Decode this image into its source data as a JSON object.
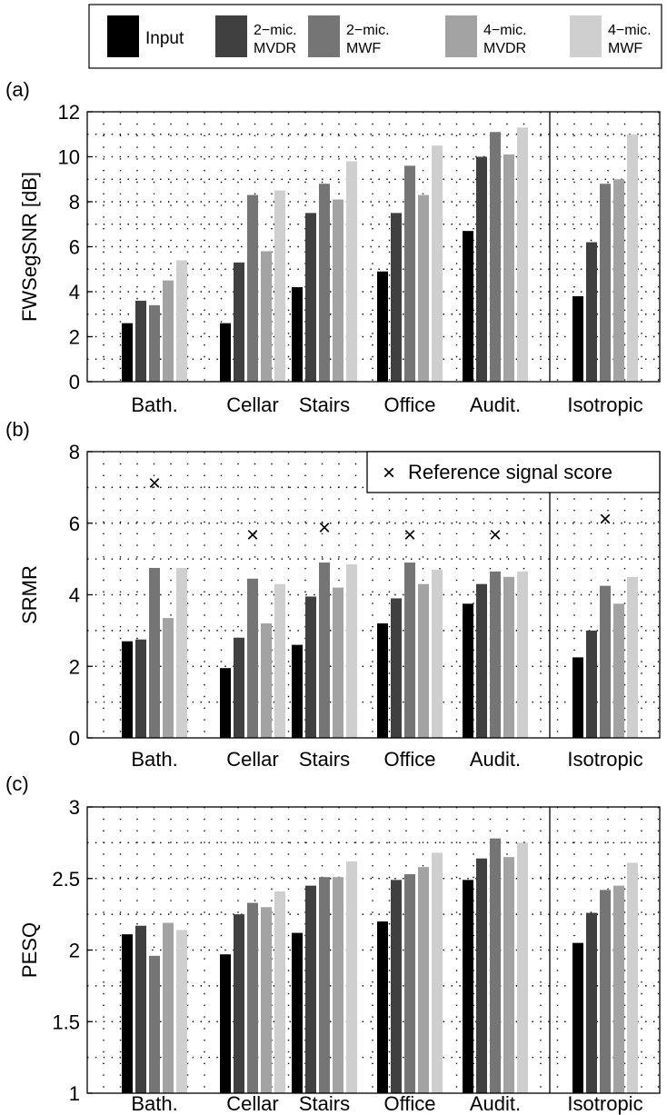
{
  "legend": {
    "colors": [
      "#000000",
      "#404040",
      "#757575",
      "#a3a3a3",
      "#cfcfcf"
    ],
    "entries": [
      {
        "line1": "Input",
        "line2": ""
      },
      {
        "line1": "2−mic.",
        "line2": "MVDR"
      },
      {
        "line1": "2−mic.",
        "line2": "MWF"
      },
      {
        "line1": "4−mic.",
        "line2": "MVDR"
      },
      {
        "line1": "4−mic.",
        "line2": "MWF"
      }
    ]
  },
  "chart_data": [
    {
      "type": "bar",
      "panel_label": "(a)",
      "ylabel": "FWSegSNR [dB]",
      "ylim": [
        0,
        12
      ],
      "yticks": [
        0,
        2,
        4,
        6,
        8,
        10,
        12
      ],
      "ytick_labels": [
        "0",
        "2",
        "4",
        "6",
        "8",
        "10",
        "12"
      ],
      "categories": [
        "Bath.",
        "Cellar",
        "Stairs",
        "Office",
        "Audit.",
        "Isotropic"
      ],
      "grid": true,
      "series": [
        {
          "name": "Input",
          "values": [
            2.6,
            2.6,
            4.2,
            4.9,
            6.7,
            3.8
          ]
        },
        {
          "name": "2−mic. MVDR",
          "values": [
            3.6,
            5.3,
            7.5,
            7.5,
            10.0,
            6.2
          ]
        },
        {
          "name": "2−mic. MWF",
          "values": [
            3.4,
            8.3,
            8.8,
            9.6,
            11.1,
            8.8
          ]
        },
        {
          "name": "4−mic. MVDR",
          "values": [
            4.5,
            5.8,
            8.1,
            8.3,
            10.1,
            9.0
          ]
        },
        {
          "name": "4−mic. MWF",
          "values": [
            5.4,
            8.5,
            9.8,
            10.5,
            11.3,
            11.0
          ]
        }
      ]
    },
    {
      "type": "bar",
      "panel_label": "(b)",
      "ylabel": "SRMR",
      "ylim": [
        0,
        8
      ],
      "yticks": [
        0,
        2,
        4,
        6,
        8
      ],
      "ytick_labels": [
        "0",
        "2",
        "4",
        "6",
        "8"
      ],
      "categories": [
        "Bath.",
        "Cellar",
        "Stairs",
        "Office",
        "Audit.",
        "Isotropic"
      ],
      "grid": true,
      "series": [
        {
          "name": "Input",
          "values": [
            2.7,
            1.95,
            2.6,
            3.2,
            3.75,
            2.25
          ]
        },
        {
          "name": "2−mic. MVDR",
          "values": [
            2.75,
            2.8,
            3.95,
            3.9,
            4.3,
            3.0
          ]
        },
        {
          "name": "2−mic. MWF",
          "values": [
            4.75,
            4.45,
            4.9,
            4.9,
            4.65,
            4.25
          ]
        },
        {
          "name": "4−mic. MVDR",
          "values": [
            3.35,
            3.2,
            4.2,
            4.3,
            4.5,
            3.75
          ]
        },
        {
          "name": "4−mic. MWF",
          "values": [
            4.75,
            4.3,
            4.85,
            4.7,
            4.65,
            4.5
          ]
        }
      ],
      "reference": {
        "name": "Reference signal score",
        "marker": "×",
        "values": [
          7.1,
          5.65,
          5.85,
          5.65,
          5.65,
          6.1
        ]
      },
      "legend_position": "top-right"
    },
    {
      "type": "bar",
      "panel_label": "(c)",
      "ylabel": "PESQ",
      "ylim": [
        1,
        3
      ],
      "yticks": [
        1,
        1.5,
        2,
        2.5,
        3
      ],
      "ytick_labels": [
        "1",
        "1.5",
        "2",
        "2.5",
        "3"
      ],
      "categories": [
        "Bath.",
        "Cellar",
        "Stairs",
        "Office",
        "Audit.",
        "Isotropic"
      ],
      "grid": true,
      "series": [
        {
          "name": "Input",
          "values": [
            2.11,
            1.97,
            2.12,
            2.2,
            2.49,
            2.05
          ]
        },
        {
          "name": "2−mic. MVDR",
          "values": [
            2.17,
            2.25,
            2.45,
            2.49,
            2.64,
            2.26
          ]
        },
        {
          "name": "2−mic. MWF",
          "values": [
            1.96,
            2.33,
            2.51,
            2.53,
            2.78,
            2.42
          ]
        },
        {
          "name": "4−mic. MVDR",
          "values": [
            2.19,
            2.3,
            2.51,
            2.58,
            2.65,
            2.45
          ]
        },
        {
          "name": "4−mic. MWF",
          "values": [
            2.14,
            2.41,
            2.62,
            2.68,
            2.75,
            2.61
          ]
        }
      ]
    }
  ]
}
